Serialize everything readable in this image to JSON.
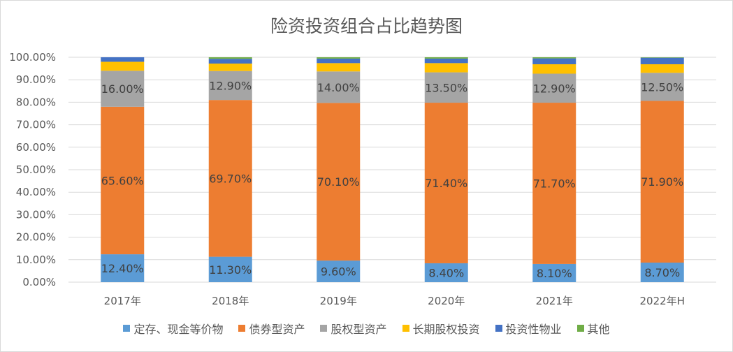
{
  "chart_data": {
    "type": "bar",
    "stacked": true,
    "title": "险资投资组合占比趋势图",
    "categories": [
      "2017年",
      "2018年",
      "2019年",
      "2020年",
      "2021年",
      "2022年H"
    ],
    "ylim": [
      0,
      100
    ],
    "yticks": [
      "0.00%",
      "10.00%",
      "20.00%",
      "30.00%",
      "40.00%",
      "50.00%",
      "60.00%",
      "70.00%",
      "80.00%",
      "90.00%",
      "100.00%"
    ],
    "grid": true,
    "legend_position": "bottom",
    "series": [
      {
        "name": "定存、现金等价物",
        "color": "#5b9bd5",
        "values": [
          12.4,
          11.3,
          9.6,
          8.4,
          8.1,
          8.7
        ],
        "labeled": true
      },
      {
        "name": "债券型资产",
        "color": "#ed7d31",
        "values": [
          65.6,
          69.7,
          70.1,
          71.4,
          71.7,
          71.9
        ],
        "labeled": true
      },
      {
        "name": "股权型资产",
        "color": "#a5a5a5",
        "values": [
          16.0,
          12.9,
          14.0,
          13.5,
          12.9,
          12.5
        ],
        "labeled": true
      },
      {
        "name": "长期股权投资",
        "color": "#ffc000",
        "values": [
          4.0,
          3.3,
          3.7,
          4.1,
          4.2,
          3.8
        ],
        "labeled": false
      },
      {
        "name": "投资性物业",
        "color": "#4472c4",
        "values": [
          2.0,
          2.1,
          2.0,
          2.0,
          2.6,
          2.9
        ],
        "labeled": false
      },
      {
        "name": "其他",
        "color": "#70ad47",
        "values": [
          0.0,
          0.7,
          0.6,
          0.6,
          0.5,
          0.2
        ],
        "labeled": false
      }
    ]
  }
}
